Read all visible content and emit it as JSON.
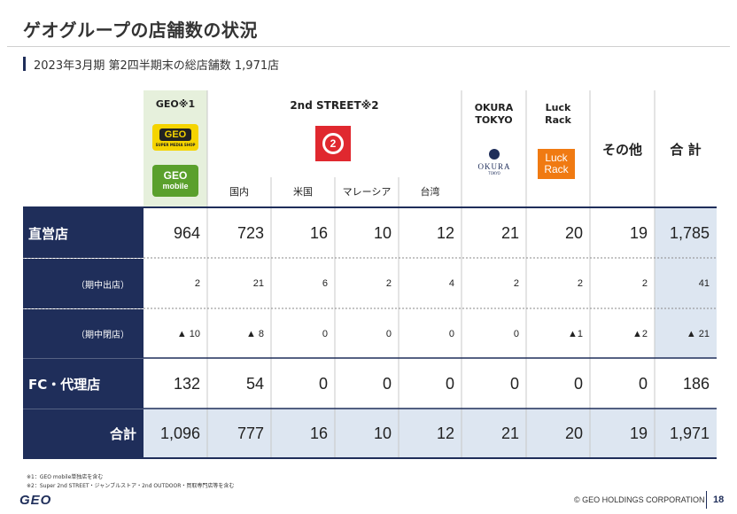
{
  "title": "ゲオグループの店舗数の状況",
  "subtitle": "2023年3月期 第2四半期末の総店舗数 1,971店",
  "columns": {
    "geo": "GEO※1",
    "geo_logo_text": "GEO",
    "geo_logo_sub": "SUPER MEDIA SHOP",
    "geo_mobile_text": "GEO",
    "geo_mobile_sub": "mobile",
    "second_street": "2nd STREET※2",
    "second_street_logo_text": "2",
    "sub_domestic": "国内",
    "sub_us": "米国",
    "sub_malaysia": "マレーシア",
    "sub_taiwan": "台湾",
    "okura": "OKURA\nTOKYO",
    "okura_logo_text": "OKURA",
    "okura_logo_sub": "TOKYO",
    "luck_rack": "Luck\nRack",
    "luck_logo_line1": "Luck",
    "luck_logo_line2": "Rack",
    "other": "その他",
    "total": "合 計"
  },
  "rows": [
    {
      "label": "直営店",
      "values": [
        "964",
        "723",
        "16",
        "10",
        "12",
        "21",
        "20",
        "19",
        "1,785"
      ]
    },
    {
      "label": "（期中出店）",
      "values": [
        "2",
        "21",
        "6",
        "2",
        "4",
        "2",
        "2",
        "2",
        "41"
      ]
    },
    {
      "label": "（期中閉店）",
      "values": [
        "▲ 10",
        "▲ 8",
        "0",
        "0",
        "0",
        "0",
        "▲1",
        "▲2",
        "▲ 21"
      ]
    },
    {
      "label": "FC・代理店",
      "values": [
        "132",
        "54",
        "0",
        "0",
        "0",
        "0",
        "0",
        "0",
        "186"
      ]
    },
    {
      "label": "合計",
      "values": [
        "1,096",
        "777",
        "16",
        "10",
        "12",
        "21",
        "20",
        "19",
        "1,971"
      ]
    }
  ],
  "footnotes": [
    "※1：GEO mobile単独店を含む",
    "※2：Super 2nd STREET・ジャンブルストア・2nd OUTDOOR・買取専門店等を含む"
  ],
  "footer": {
    "logo_text": "GEO",
    "copyright": "© GEO HOLDINGS CORPORATION",
    "page_number": "18"
  },
  "colors": {
    "navy": "#1f2e5a",
    "light_blue": "#dde6f1",
    "light_green": "#e6f0dc",
    "geo_yellow": "#f5d400",
    "geo_green": "#5aa02c",
    "second_street_red": "#e0282f",
    "luck_orange": "#f07a12"
  }
}
